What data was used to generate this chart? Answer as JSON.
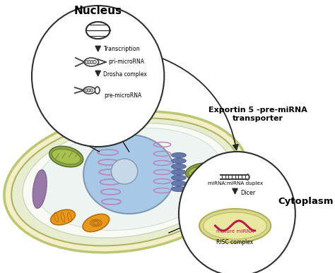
{
  "bg_color": "#ffffff",
  "nucleus_label": "Nucleus",
  "cytoplasm_label": "Cytoplasm",
  "exportin_label": "Exportin 5 -pre-miRNA\ntransporter",
  "transcription_label": "Transcription",
  "drosha_label": "Drosha complex",
  "pri_mirna_label": "pri-microRNA",
  "pre_mirna_label": "pre-microRNA",
  "mirna_duplex_label": "miRNA:miRNA duplex",
  "dicer_label": "Dicer",
  "mature_mirna_label": "mature miRNA",
  "risc_label": "RISC complex",
  "cell_outer_fc": "#f5eec8",
  "cell_outer_ec": "#b8c870",
  "cell_mid_fc": "#e8edd0",
  "cell_mid_ec": "#a8b860",
  "cell_inner_fc": "#f5f8f0",
  "cell_inner_ec": "#c8d8c0",
  "nucleus_fc": "#a8c8e8",
  "nucleus_ec": "#8098b0",
  "nucleolus_fc": "#c8d8e8",
  "nucleolus_ec": "#8098b0",
  "er_ec": "#b888b8",
  "golgi_fc": "#6878a8",
  "golgi_ec": "#5068a0",
  "chloro1_fc": "#88a840",
  "chloro1_ec": "#607030",
  "chloro1_inner_fc": "#a8c050",
  "chloro2_fc": "#88a840",
  "chloro2_ec": "#607030",
  "chloro2_inner_fc": "#a8c050",
  "mito_fc": "#e8981a",
  "mito_ec": "#b87010",
  "mito2_fc": "#e8981a",
  "purp_fc": "#9878a8",
  "purp_ec": "#806890",
  "zoom_ec": "#303030",
  "zoom_fc": "#ffffff",
  "arrow_color": "#282828",
  "dna_color": "#303030",
  "struct_color": "#404040",
  "duplex_color": "#404040",
  "mature_mirna_color": "#c01848",
  "risc_outer_fc": "#d8d890",
  "risc_outer_ec": "#b0b050",
  "risc_inner_fc": "#e8e8a0",
  "risc_inner_ec": "#c0c060"
}
